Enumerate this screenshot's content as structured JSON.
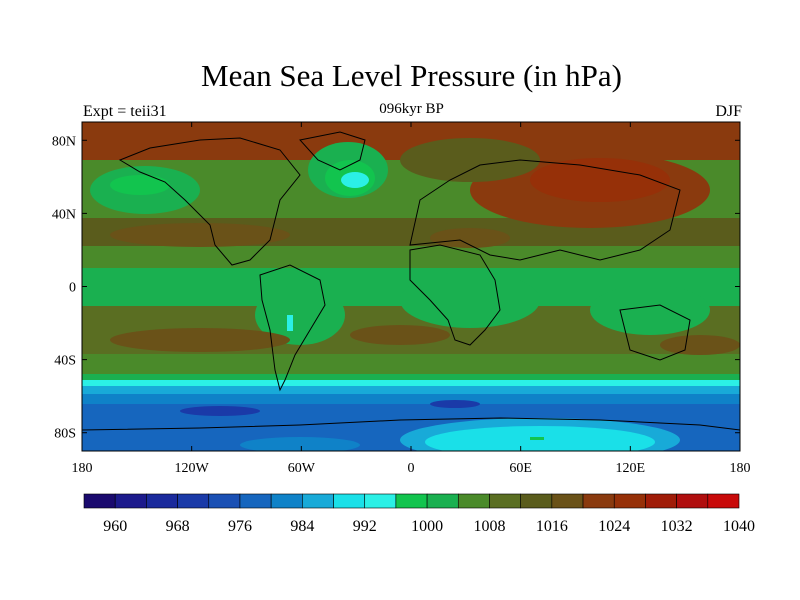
{
  "title": "Mean Sea Level Pressure (in hPa)",
  "left_label": "Expt = teii31",
  "center_label": "096kyr BP",
  "right_label": "DJF",
  "map": {
    "projection": "cylindrical-equidistant",
    "lon_range": [
      -180,
      180
    ],
    "lat_range": [
      -90,
      90
    ],
    "x_ticks": [
      {
        "value": -180,
        "label": "180"
      },
      {
        "value": -120,
        "label": "120W"
      },
      {
        "value": -60,
        "label": "60W"
      },
      {
        "value": 0,
        "label": "0"
      },
      {
        "value": 60,
        "label": "60E"
      },
      {
        "value": 120,
        "label": "120E"
      },
      {
        "value": 180,
        "label": "180"
      }
    ],
    "y_ticks": [
      {
        "value": 80,
        "label": "80N"
      },
      {
        "value": 40,
        "label": "40N"
      },
      {
        "value": 0,
        "label": "0"
      },
      {
        "value": -40,
        "label": "40S"
      },
      {
        "value": -80,
        "label": "80S"
      }
    ]
  },
  "colorbar": {
    "colors": [
      "#1a0a6e",
      "#1c1a8c",
      "#1a2a9c",
      "#1a3aa8",
      "#1a50b4",
      "#1666be",
      "#0f82c8",
      "#18aad8",
      "#1ae0e8",
      "#2bf0e6",
      "#12c44e",
      "#1ab050",
      "#4a8a2a",
      "#5a6e22",
      "#5a5c1c",
      "#6a5218",
      "#8a3a0e",
      "#963008",
      "#a01c08",
      "#b00e0e",
      "#c80a0a"
    ],
    "labels": [
      {
        "index": 0,
        "label": "960"
      },
      {
        "index": 2,
        "label": "968"
      },
      {
        "index": 4,
        "label": "976"
      },
      {
        "index": 6,
        "label": "984"
      },
      {
        "index": 8,
        "label": "992"
      },
      {
        "index": 10,
        "label": "1000"
      },
      {
        "index": 12,
        "label": "1008"
      },
      {
        "index": 14,
        "label": "1016"
      },
      {
        "index": 16,
        "label": "1024"
      },
      {
        "index": 18,
        "label": "1032"
      },
      {
        "index": 20,
        "label": "1040"
      }
    ]
  }
}
